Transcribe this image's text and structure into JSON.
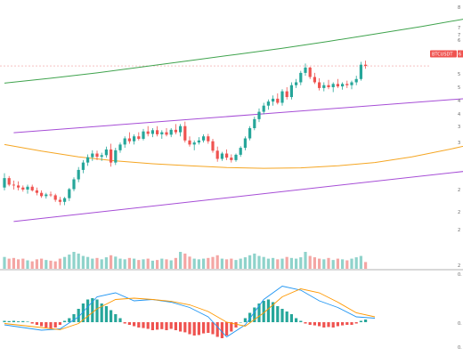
{
  "chart_data": {
    "type": "candlestick",
    "symbol_tag": "BTCUSDT",
    "last_price_text": "6",
    "price_axis_labels": [
      "8",
      "7",
      "7",
      "6",
      "5",
      "5",
      "4",
      "4",
      "3",
      "3",
      "2",
      "2",
      "2",
      "2"
    ],
    "macd_axis_labels": [
      "0.",
      "0.",
      "0."
    ],
    "colors": {
      "up": "#26a69a",
      "down": "#ef5350",
      "up_volume": "#8fd3cb",
      "down_volume": "#f4a6a4",
      "channel": "#a64dd6",
      "ma_slow": "#3fa34d",
      "ma_fast": "#f5a623",
      "macd": "#2196f3",
      "signal": "#ff9800",
      "price_tag": "#ef5350"
    },
    "trend_channel": {
      "upper": [
        [
          2.0,
          4.39
        ],
        [
          118.0,
          5.38
        ]
      ],
      "lower": [
        [
          2.0,
          2.22
        ],
        [
          118.0,
          3.68
        ]
      ]
    },
    "ma_slow": [
      [
        0,
        5.6
      ],
      [
        10,
        5.72
      ],
      [
        20,
        5.85
      ],
      [
        30,
        6.0
      ],
      [
        40,
        6.15
      ],
      [
        50,
        6.3
      ],
      [
        60,
        6.45
      ],
      [
        70,
        6.62
      ],
      [
        80,
        6.8
      ],
      [
        90,
        6.98
      ],
      [
        100,
        7.18
      ],
      [
        110,
        7.4
      ],
      [
        118,
        7.6
      ]
    ],
    "ma_fast": [
      [
        0,
        4.1
      ],
      [
        8,
        3.94
      ],
      [
        16,
        3.8
      ],
      [
        24,
        3.7
      ],
      [
        32,
        3.63
      ],
      [
        40,
        3.58
      ],
      [
        48,
        3.54
      ],
      [
        56,
        3.52
      ],
      [
        64,
        3.53
      ],
      [
        72,
        3.58
      ],
      [
        80,
        3.66
      ],
      [
        88,
        3.8
      ],
      [
        96,
        3.98
      ],
      [
        104,
        4.18
      ],
      [
        112,
        4.38
      ],
      [
        118,
        4.53
      ]
    ],
    "candles": [
      [
        3.05,
        3.4,
        2.98,
        3.28
      ],
      [
        3.28,
        3.33,
        3.08,
        3.12
      ],
      [
        3.12,
        3.22,
        3.0,
        3.1
      ],
      [
        3.1,
        3.2,
        2.98,
        3.05
      ],
      [
        3.05,
        3.1,
        2.95,
        3.0
      ],
      [
        3.0,
        3.12,
        2.9,
        3.07
      ],
      [
        3.07,
        3.12,
        2.95,
        2.98
      ],
      [
        2.98,
        3.05,
        2.86,
        2.92
      ],
      [
        2.92,
        2.98,
        2.8,
        2.84
      ],
      [
        2.84,
        2.92,
        2.78,
        2.88
      ],
      [
        2.88,
        2.95,
        2.82,
        2.86
      ],
      [
        2.86,
        2.9,
        2.7,
        2.75
      ],
      [
        2.75,
        2.82,
        2.62,
        2.7
      ],
      [
        2.7,
        2.82,
        2.62,
        2.79
      ],
      [
        2.79,
        3.04,
        2.72,
        3.01
      ],
      [
        3.01,
        3.3,
        2.96,
        3.25
      ],
      [
        3.25,
        3.55,
        3.18,
        3.48
      ],
      [
        3.48,
        3.72,
        3.4,
        3.66
      ],
      [
        3.66,
        3.86,
        3.58,
        3.79
      ],
      [
        3.79,
        3.96,
        3.7,
        3.88
      ],
      [
        3.88,
        3.95,
        3.72,
        3.8
      ],
      [
        3.8,
        3.9,
        3.7,
        3.84
      ],
      [
        3.84,
        4.05,
        3.78,
        3.98
      ],
      [
        3.98,
        4.12,
        3.56,
        3.66
      ],
      [
        3.66,
        4.02,
        3.6,
        3.96
      ],
      [
        3.96,
        4.15,
        3.9,
        4.1
      ],
      [
        4.1,
        4.3,
        4.02,
        4.25
      ],
      [
        4.25,
        4.4,
        4.12,
        4.18
      ],
      [
        4.18,
        4.35,
        4.1,
        4.3
      ],
      [
        4.3,
        4.4,
        4.2,
        4.24
      ],
      [
        4.24,
        4.48,
        4.2,
        4.42
      ],
      [
        4.42,
        4.55,
        4.3,
        4.36
      ],
      [
        4.36,
        4.5,
        4.28,
        4.45
      ],
      [
        4.45,
        4.55,
        4.3,
        4.35
      ],
      [
        4.35,
        4.45,
        4.24,
        4.4
      ],
      [
        4.4,
        4.5,
        4.3,
        4.34
      ],
      [
        4.34,
        4.5,
        4.28,
        4.46
      ],
      [
        4.46,
        4.6,
        4.35,
        4.4
      ],
      [
        4.4,
        4.6,
        4.3,
        4.55
      ],
      [
        4.55,
        4.66,
        4.15,
        4.2
      ],
      [
        4.2,
        4.3,
        4.05,
        4.1
      ],
      [
        4.1,
        4.2,
        3.96,
        4.15
      ],
      [
        4.15,
        4.28,
        4.1,
        4.2
      ],
      [
        4.2,
        4.35,
        4.15,
        4.3
      ],
      [
        4.3,
        4.36,
        4.12,
        4.18
      ],
      [
        4.18,
        4.24,
        3.9,
        3.95
      ],
      [
        3.95,
        4.05,
        3.68,
        3.75
      ],
      [
        3.75,
        3.92,
        3.7,
        3.88
      ],
      [
        3.88,
        3.98,
        3.72,
        3.78
      ],
      [
        3.78,
        3.86,
        3.66,
        3.72
      ],
      [
        3.72,
        3.88,
        3.68,
        3.85
      ],
      [
        3.85,
        4.06,
        3.8,
        4.02
      ],
      [
        4.02,
        4.3,
        3.96,
        4.25
      ],
      [
        4.25,
        4.55,
        4.2,
        4.5
      ],
      [
        4.5,
        4.78,
        4.45,
        4.72
      ],
      [
        4.72,
        4.98,
        4.65,
        4.9
      ],
      [
        4.9,
        5.12,
        4.84,
        5.05
      ],
      [
        5.05,
        5.2,
        4.95,
        5.15
      ],
      [
        5.15,
        5.3,
        5.05,
        5.22
      ],
      [
        5.22,
        5.35,
        5.08,
        5.12
      ],
      [
        5.12,
        5.45,
        5.05,
        5.4
      ],
      [
        5.4,
        5.5,
        5.2,
        5.26
      ],
      [
        5.26,
        5.62,
        5.2,
        5.55
      ],
      [
        5.55,
        5.7,
        5.48,
        5.62
      ],
      [
        5.62,
        5.9,
        5.55,
        5.85
      ],
      [
        5.85,
        6.08,
        5.78,
        5.98
      ],
      [
        5.98,
        6.0,
        5.7,
        5.75
      ],
      [
        5.75,
        5.85,
        5.58,
        5.62
      ],
      [
        5.62,
        5.72,
        5.42,
        5.48
      ],
      [
        5.48,
        5.62,
        5.4,
        5.55
      ],
      [
        5.55,
        5.68,
        5.45,
        5.5
      ],
      [
        5.5,
        5.62,
        5.38,
        5.58
      ],
      [
        5.58,
        5.7,
        5.48,
        5.52
      ],
      [
        5.52,
        5.62,
        5.44,
        5.58
      ],
      [
        5.58,
        5.66,
        5.48,
        5.55
      ],
      [
        5.55,
        5.66,
        5.45,
        5.62
      ],
      [
        5.62,
        5.78,
        5.55,
        5.7
      ],
      [
        5.7,
        6.12,
        5.66,
        6.05
      ],
      [
        6.05,
        6.15,
        5.95,
        6.02
      ]
    ],
    "volumes": [
      0.35,
      0.3,
      0.32,
      0.28,
      0.3,
      0.25,
      0.22,
      0.28,
      0.3,
      0.26,
      0.24,
      0.22,
      0.3,
      0.35,
      0.42,
      0.5,
      0.45,
      0.38,
      0.35,
      0.3,
      0.32,
      0.28,
      0.34,
      0.4,
      0.36,
      0.3,
      0.28,
      0.32,
      0.3,
      0.26,
      0.28,
      0.3,
      0.24,
      0.26,
      0.3,
      0.28,
      0.25,
      0.32,
      0.5,
      0.45,
      0.36,
      0.3,
      0.28,
      0.3,
      0.32,
      0.35,
      0.4,
      0.3,
      0.28,
      0.3,
      0.26,
      0.3,
      0.34,
      0.4,
      0.45,
      0.38,
      0.35,
      0.3,
      0.32,
      0.28,
      0.3,
      0.35,
      0.32,
      0.3,
      0.34,
      0.5,
      0.38,
      0.34,
      0.3,
      0.28,
      0.32,
      0.26,
      0.3,
      0.28,
      0.25,
      0.3,
      0.34,
      0.38,
      0.2
    ],
    "volume_scale_max": 1.0,
    "macd_hist": [
      0.05,
      0.04,
      0.05,
      0.03,
      0.04,
      0.02,
      -0.05,
      -0.1,
      -0.15,
      -0.2,
      -0.25,
      -0.2,
      -0.1,
      0.05,
      0.15,
      0.3,
      0.5,
      0.7,
      0.85,
      0.9,
      0.85,
      0.7,
      0.6,
      0.45,
      0.3,
      0.15,
      -0.05,
      -0.1,
      -0.15,
      -0.2,
      -0.22,
      -0.25,
      -0.3,
      -0.28,
      -0.26,
      -0.3,
      -0.25,
      -0.3,
      -0.35,
      -0.38,
      -0.45,
      -0.5,
      -0.48,
      -0.42,
      -0.4,
      -0.45,
      -0.55,
      -0.6,
      -0.5,
      -0.35,
      -0.2,
      0.0,
      0.15,
      0.35,
      0.55,
      0.7,
      0.8,
      0.85,
      0.75,
      0.6,
      0.5,
      0.4,
      0.3,
      0.15,
      0.05,
      -0.05,
      -0.1,
      -0.12,
      -0.15,
      -0.2,
      -0.18,
      -0.2,
      -0.15,
      -0.12,
      -0.1,
      -0.1,
      -0.05,
      0.05,
      0.1
    ],
    "macd_line": [
      [
        0,
        -0.1
      ],
      [
        8,
        -0.3
      ],
      [
        12,
        -0.25
      ],
      [
        16,
        0.2
      ],
      [
        20,
        0.95
      ],
      [
        24,
        1.1
      ],
      [
        28,
        0.8
      ],
      [
        32,
        0.85
      ],
      [
        36,
        0.75
      ],
      [
        40,
        0.55
      ],
      [
        44,
        0.2
      ],
      [
        48,
        -0.55
      ],
      [
        52,
        -0.1
      ],
      [
        56,
        0.85
      ],
      [
        60,
        1.35
      ],
      [
        64,
        1.2
      ],
      [
        68,
        0.8
      ],
      [
        72,
        0.55
      ],
      [
        76,
        0.2
      ],
      [
        80,
        0.15
      ]
    ],
    "signal_line": [
      [
        0,
        -0.05
      ],
      [
        8,
        -0.2
      ],
      [
        12,
        -0.28
      ],
      [
        16,
        -0.05
      ],
      [
        20,
        0.5
      ],
      [
        24,
        0.85
      ],
      [
        28,
        0.9
      ],
      [
        32,
        0.85
      ],
      [
        36,
        0.78
      ],
      [
        40,
        0.65
      ],
      [
        44,
        0.4
      ],
      [
        48,
        0.0
      ],
      [
        52,
        -0.15
      ],
      [
        56,
        0.35
      ],
      [
        60,
        0.95
      ],
      [
        64,
        1.25
      ],
      [
        68,
        1.1
      ],
      [
        72,
        0.75
      ],
      [
        76,
        0.35
      ],
      [
        80,
        0.2
      ]
    ],
    "macd_scale": [
      -0.9,
      1.45
    ]
  }
}
